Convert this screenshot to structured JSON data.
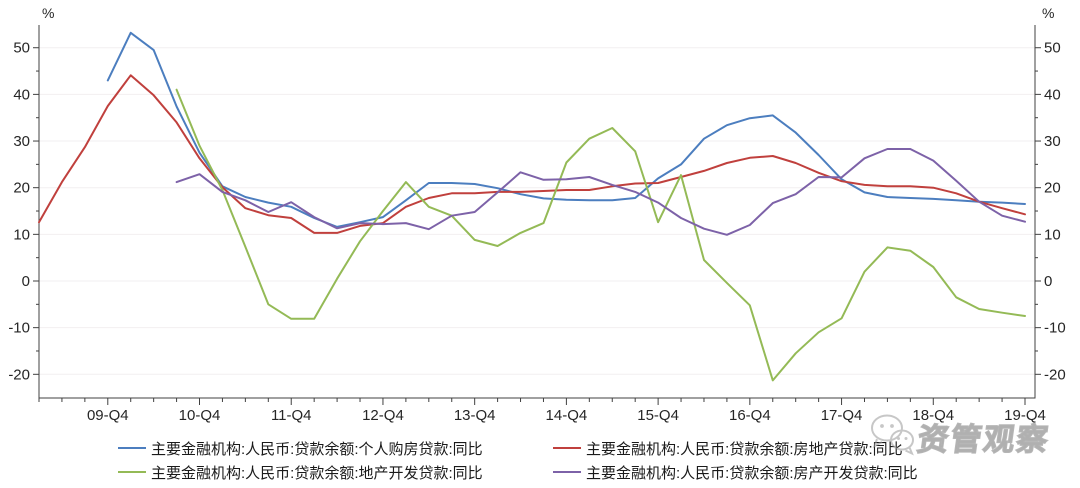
{
  "chart_data": {
    "type": "line",
    "title": "",
    "y_axis_unit": "%",
    "ylim": [
      -25,
      55
    ],
    "yticks": [
      -20,
      -10,
      0,
      10,
      20,
      30,
      40,
      50
    ],
    "yticks_minor": [
      -15,
      -5,
      5,
      15,
      25,
      35,
      45,
      55
    ],
    "grid": true,
    "legend_position": "bottom",
    "categories": [
      "09-Q1",
      "09-Q2",
      "09-Q3",
      "09-Q4",
      "10-Q1",
      "10-Q2",
      "10-Q3",
      "10-Q4",
      "11-Q1",
      "11-Q2",
      "11-Q3",
      "11-Q4",
      "12-Q1",
      "12-Q2",
      "12-Q3",
      "12-Q4",
      "13-Q1",
      "13-Q2",
      "13-Q3",
      "13-Q4",
      "14-Q1",
      "14-Q2",
      "14-Q3",
      "14-Q4",
      "15-Q1",
      "15-Q2",
      "15-Q3",
      "15-Q4",
      "16-Q1",
      "16-Q2",
      "16-Q3",
      "16-Q4",
      "17-Q1",
      "17-Q2",
      "17-Q3",
      "17-Q4",
      "18-Q1",
      "18-Q2",
      "18-Q3",
      "18-Q4",
      "19-Q1",
      "19-Q2",
      "19-Q3",
      "19-Q4"
    ],
    "xtick_labels": [
      "09-Q4",
      "10-Q4",
      "11-Q4",
      "12-Q4",
      "13-Q4",
      "14-Q4",
      "15-Q4",
      "16-Q4",
      "17-Q4",
      "18-Q4",
      "19-Q4"
    ],
    "series": [
      {
        "name": "主要金融机构:人民币:贷款余额:个人购房贷款:同比",
        "color": "#4c7ebf",
        "start_index": 3,
        "values": [
          43.0,
          53.2,
          49.5,
          37.4,
          27.5,
          20.3,
          18.0,
          16.8,
          15.9,
          13.5,
          11.6,
          12.6,
          13.7,
          17.3,
          21.0,
          21.0,
          20.8,
          19.9,
          18.6,
          17.7,
          17.4,
          17.3,
          17.3,
          17.8,
          22.0,
          25.0,
          30.5,
          33.4,
          34.9,
          35.5,
          31.8,
          27.0,
          21.8,
          19.0,
          18.0,
          17.8,
          17.6,
          17.3,
          17.0,
          16.8,
          16.5
        ]
      },
      {
        "name": "主要金融机构:人民币:贷款余额:房地产贷款:同比",
        "color": "#c0403d",
        "start_index": 0,
        "values": [
          12.6,
          21.2,
          28.7,
          37.5,
          44.1,
          39.8,
          34.0,
          26.3,
          20.1,
          15.6,
          14.1,
          13.5,
          10.3,
          10.3,
          11.8,
          12.4,
          15.9,
          17.8,
          18.8,
          18.8,
          19.1,
          19.1,
          19.3,
          19.5,
          19.5,
          20.3,
          20.9,
          21.0,
          22.3,
          23.6,
          25.3,
          26.4,
          26.8,
          25.3,
          23.2,
          21.4,
          20.6,
          20.3,
          20.3,
          20.0,
          18.8,
          17.0,
          15.6,
          14.3
        ]
      },
      {
        "name": "主要金融机构:人民币:贷款余额:地产开发贷款:同比",
        "color": "#94ba56",
        "start_index": 6,
        "values": [
          41.0,
          29.0,
          19.5,
          7.3,
          -5.0,
          -8.1,
          -8.1,
          0.5,
          8.5,
          15.0,
          21.2,
          15.9,
          14.0,
          8.8,
          7.5,
          10.3,
          12.4,
          25.4,
          30.5,
          32.8,
          27.8,
          12.6,
          22.7,
          4.5,
          -0.4,
          -5.2,
          -21.3,
          -15.5,
          -11.0,
          -8.0,
          2.0,
          7.2,
          6.5,
          3.0,
          -3.5,
          -6.0,
          -6.8,
          -7.5
        ]
      },
      {
        "name": "主要金融机构:人民币:贷款余额:房产开发贷款:同比",
        "color": "#7d62a8",
        "start_index": 6,
        "values": [
          21.2,
          22.9,
          19.1,
          17.3,
          14.8,
          16.9,
          13.7,
          11.3,
          12.4,
          12.2,
          12.4,
          11.1,
          14.0,
          14.8,
          19.0,
          23.3,
          21.7,
          21.8,
          22.3,
          20.6,
          19.1,
          16.8,
          13.5,
          11.2,
          9.9,
          12.0,
          16.7,
          18.6,
          22.3,
          22.2,
          26.3,
          28.3,
          28.3,
          25.8,
          21.5,
          17.0,
          14.0,
          12.7
        ]
      }
    ]
  },
  "watermark": {
    "text": "资管观察",
    "icon": "wechat-icon"
  }
}
